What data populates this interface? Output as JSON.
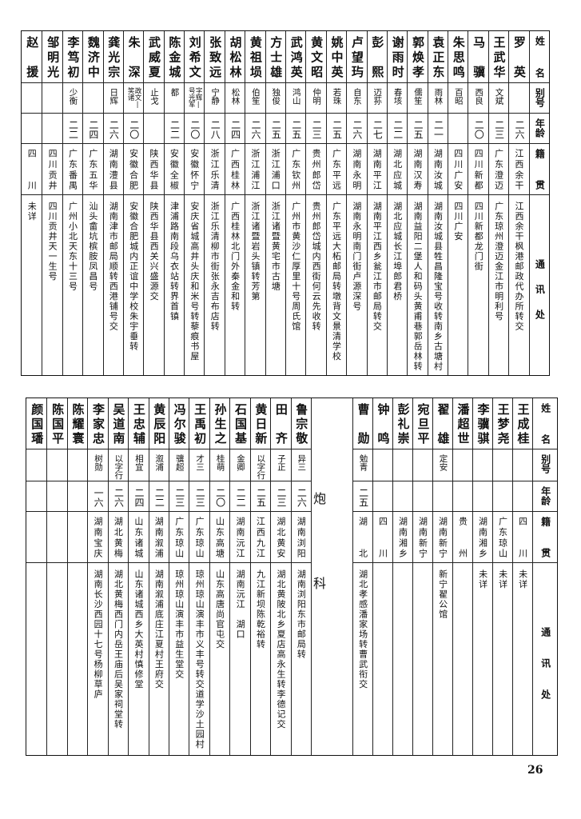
{
  "headers": {
    "name": "姓名",
    "alias": "别号",
    "age": "年龄",
    "origin": "籍贯",
    "address": "通讯处"
  },
  "top": {
    "rows": [
      {
        "name": "罗英",
        "alias": "",
        "age": "二六",
        "origin": "江西余干",
        "address": "江西余干枫港邮政代办所转交"
      },
      {
        "name": "王武华",
        "alias": "文斌",
        "age": "二三",
        "origin": "广东澄迈",
        "address": "广东琼州澄迈金江市明利号"
      },
      {
        "name": "马骥",
        "alias": "西良",
        "age": "二〇",
        "origin": "四川新都",
        "address": "四川新都龙门街"
      },
      {
        "name": "朱思鸣",
        "alias": "百昭",
        "age": "",
        "origin": "四川广安",
        "address": "四川广安"
      },
      {
        "name": "袁正东",
        "alias": "雨林",
        "age": "二一",
        "origin": "湖南汝城",
        "address": "湖南汝城县牲昌隆宝号收转南乡古塘村"
      },
      {
        "name": "郭焕孝",
        "alias": "儒笙",
        "age": "二五",
        "origin": "湖南汉寿",
        "address": "湖南益阳二堡人和码头黄甫巷郭岳林转"
      },
      {
        "name": "谢雨时",
        "alias": "春垓",
        "age": "二二",
        "origin": "湖北应城",
        "address": "湖北应城长江埠郎君桥"
      },
      {
        "name": "彭熙",
        "alias": "迈荪",
        "age": "二七",
        "origin": "湖南平江",
        "address": "湖南平江西乡瓮江市邮局转交"
      },
      {
        "name": "卢望玙",
        "alias": "自东",
        "age": "二六",
        "origin": "湖南永明",
        "address": "湖南永明南门街卢源深号"
      },
      {
        "name": "姚中英",
        "alias": "若珠",
        "age": "二五",
        "origin": "广东平远",
        "address": "广东平远大柘邮局转墩背文景清学校"
      },
      {
        "name": "黄文昭",
        "alias": "仲明",
        "age": "二三",
        "origin": "贵州郎岱",
        "address": "贵州郎岱城内西街何云先收转"
      },
      {
        "name": "武鸿英",
        "alias": "鸿山",
        "age": "二五",
        "origin": "广东钦州",
        "address": "广州市黄沙仁厚里十号周氏馆"
      },
      {
        "name": "方士雄",
        "alias": "独俊",
        "age": "二五",
        "origin": "浙江浦口",
        "address": "浙江诸暨黄宅市古塘"
      },
      {
        "name": "黄祖埙",
        "alias": "伯笙",
        "age": "二六",
        "origin": "浙江浦江",
        "address": "浙江诸暨岩头镇转芳第"
      },
      {
        "name": "胡松林",
        "alias": "松林",
        "age": "二四",
        "origin": "广西桂林",
        "address": "广西桂林北门外秦金和转"
      },
      {
        "name": "张致远",
        "alias": "宁静",
        "age": "二八",
        "origin": "浙江乐清",
        "address": "浙江乐清柳市街张永吉布店转"
      },
      {
        "name": "刘希文",
        "alias": "字辉|号光军",
        "age": "二〇",
        "origin": "安徽怀宁",
        "address": "安庆省城高井头庆和米号转藜痕书屋"
      },
      {
        "name": "陈金城",
        "alias": "都",
        "age": "二二",
        "origin": "安徽全椒",
        "address": "津浦路南段乌衣站转界首镇"
      },
      {
        "name": "武威夏",
        "alias": "止戈",
        "age": "",
        "origin": "陕西华县",
        "address": "陕西华县西关兴盛源交"
      },
      {
        "name": "朱深",
        "alias": "政文|笑诸",
        "age": "二〇",
        "origin": "安徽合肥",
        "address": "安徽合肥城内正谊中学校朱宇垂转"
      },
      {
        "name": "龚光宗",
        "alias": "日辉",
        "age": "二六",
        "origin": "湖南澧县",
        "address": "湖南津市邮局顺转西港铺号交"
      },
      {
        "name": "魏济中",
        "alias": "",
        "age": "二四",
        "origin": "广东五华",
        "address": "汕头畲坑槟胺凤昌号"
      },
      {
        "name": "李笃初",
        "alias": "少衡",
        "age": "二二",
        "origin": "广东番禺",
        "address": "广州小北天东十三号"
      },
      {
        "name": "邹明光",
        "alias": "",
        "age": "",
        "origin": "四川贡井",
        "address": "四川贡井天一生号"
      },
      {
        "name": "赵援",
        "alias": "",
        "age": "",
        "origin": "四川",
        "address": "未详"
      }
    ]
  },
  "bottom": {
    "rows_right": [
      {
        "name": "王成桂",
        "alias": "",
        "age": "",
        "origin": "四川",
        "address": "未详"
      },
      {
        "name": "王梦尧",
        "alias": "",
        "age": "",
        "origin": "广东琼山",
        "address": "未详"
      },
      {
        "name": "李骥骐",
        "alias": "",
        "age": "",
        "origin": "湖南湘乡",
        "address": "未详"
      },
      {
        "name": "潘超世",
        "alias": "",
        "age": "",
        "origin": "贵州",
        "address": ""
      },
      {
        "name": "翟雄",
        "alias": "定安",
        "age": "",
        "origin": "湖南新宁",
        "address": "新宁翟公馆"
      },
      {
        "name": "宛旦平",
        "alias": "",
        "age": "",
        "origin": "湖南新宁",
        "address": ""
      },
      {
        "name": "彭礼崇",
        "alias": "",
        "age": "",
        "origin": "湖南湘乡",
        "address": ""
      },
      {
        "name": "钟鸣",
        "alias": "",
        "age": "",
        "origin": "四川",
        "address": ""
      },
      {
        "name": "曹勋",
        "alias": "勉青",
        "age": "二五",
        "origin": "湖北",
        "address": "湖北孝感潘家场转曹武衔交"
      }
    ],
    "section_label": "炮科",
    "rows_left": [
      {
        "name": "鲁宗敬",
        "alias": "异三",
        "age": "二六",
        "origin": "湖南浏阳",
        "address": "湖南浏阳东市邮局转"
      },
      {
        "name": "田齐",
        "alias": "子正",
        "age": "二三",
        "origin": "湖北黄安",
        "address": "湖北黄陂北乡夏店高永生转李德记交"
      },
      {
        "name": "黄日新",
        "alias": "以字行",
        "age": "二五",
        "origin": "江西九江",
        "address": "九江新坝陈乾裕转"
      },
      {
        "name": "石国基",
        "alias": "金卿",
        "age": "二二",
        "origin": "湖南沅江",
        "address": "湖南沅江　湖口"
      },
      {
        "name": "孙生之",
        "alias": "桂萌",
        "age": "二〇",
        "origin": "山东高塘",
        "address": "山东高唐尚官屯交"
      },
      {
        "name": "王禹初",
        "alias": "才三",
        "age": "二三",
        "origin": "广东琼山",
        "address": "琼州琼山演丰市义丰号转交道学沙土园村"
      },
      {
        "name": "冯尔骏",
        "alias": "骥超",
        "age": "二三",
        "origin": "广东琼山",
        "address": "琼州琼山演丰市益生堂交"
      },
      {
        "name": "黄辰阳",
        "alias": "溆浦",
        "age": "二二",
        "origin": "湖南溆浦",
        "address": "湖南溆浦底庄江夏村王府交"
      },
      {
        "name": "王忠辅",
        "alias": "相宜",
        "age": "二四",
        "origin": "山东诸城",
        "address": "山东诸城西乡大英村慎修堂"
      },
      {
        "name": "吴道南",
        "alias": "以字行",
        "age": "二六",
        "origin": "湖北黄梅",
        "address": "湖北黄梅西门内岳王庙后吴家祠堂转"
      },
      {
        "name": "李家忠",
        "alias": "树勋",
        "age": "一六",
        "origin": "湖南宝庆",
        "address": "湖南长沙西园十七号杨柳草庐"
      },
      {
        "name": "陈耀寰",
        "alias": "",
        "age": "",
        "origin": "",
        "address": ""
      },
      {
        "name": "陈国平",
        "alias": "",
        "age": "",
        "origin": "",
        "address": ""
      },
      {
        "name": "颜国璠",
        "alias": "",
        "age": "",
        "origin": "",
        "address": ""
      }
    ]
  },
  "page_number": "26"
}
